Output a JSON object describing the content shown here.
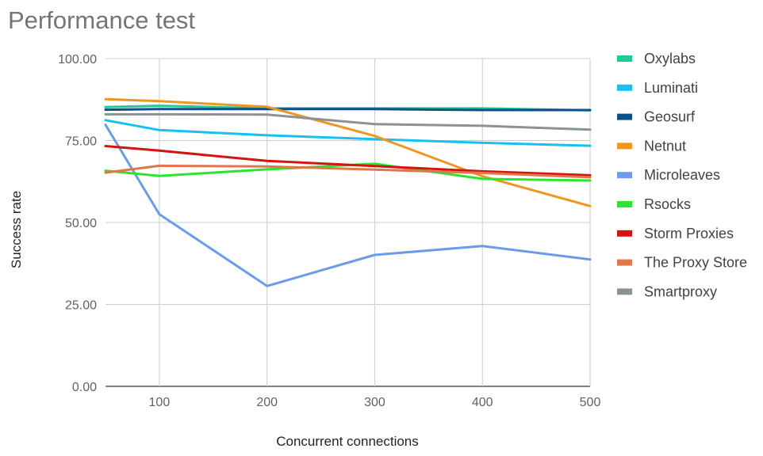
{
  "chart_data": {
    "type": "line",
    "title": "Performance test",
    "xlabel": "Concurrent connections",
    "ylabel": "Success rate",
    "xlim": [
      50,
      500
    ],
    "ylim": [
      0,
      100
    ],
    "x_ticks": [
      "100",
      "200",
      "300",
      "400",
      "500"
    ],
    "x_tick_values": [
      100,
      200,
      300,
      400,
      500
    ],
    "y_ticks": [
      "0.00",
      "25.00",
      "50.00",
      "75.00",
      "100.00"
    ],
    "y_tick_values": [
      0,
      25,
      50,
      75,
      100
    ],
    "grid": true,
    "legend_position": "right",
    "x": [
      50,
      100,
      200,
      300,
      400,
      500
    ],
    "series": [
      {
        "name": "Oxylabs",
        "color": "#20c997",
        "values": [
          85.2,
          85.6,
          84.8,
          84.8,
          84.8,
          84.2
        ]
      },
      {
        "name": "Luminati",
        "color": "#17c0f0",
        "values": [
          81.2,
          78.2,
          76.6,
          75.4,
          74.3,
          73.4
        ]
      },
      {
        "name": "Geosurf",
        "color": "#0d4f8b",
        "values": [
          84.4,
          84.6,
          84.6,
          84.6,
          84.3,
          84.3
        ]
      },
      {
        "name": "Netnut",
        "color": "#f0961e",
        "values": [
          87.6,
          87.0,
          85.3,
          76.4,
          64.1,
          55.0
        ]
      },
      {
        "name": "Microleaves",
        "color": "#6b9bea",
        "values": [
          79.8,
          52.5,
          30.6,
          40.1,
          42.8,
          38.7
        ]
      },
      {
        "name": "Rsocks",
        "color": "#2ee32e",
        "values": [
          65.8,
          64.2,
          66.2,
          67.9,
          63.3,
          62.8
        ]
      },
      {
        "name": "Storm Proxies",
        "color": "#d6140f",
        "values": [
          73.3,
          71.9,
          68.8,
          67.2,
          65.6,
          64.4
        ]
      },
      {
        "name": "The Proxy Store",
        "color": "#e27549",
        "values": [
          65.2,
          67.3,
          67.1,
          66.1,
          65.1,
          63.8
        ]
      },
      {
        "name": "Smartproxy",
        "color": "#8a9296",
        "values": [
          83.0,
          83.0,
          82.9,
          80.0,
          79.5,
          78.3
        ]
      }
    ]
  }
}
